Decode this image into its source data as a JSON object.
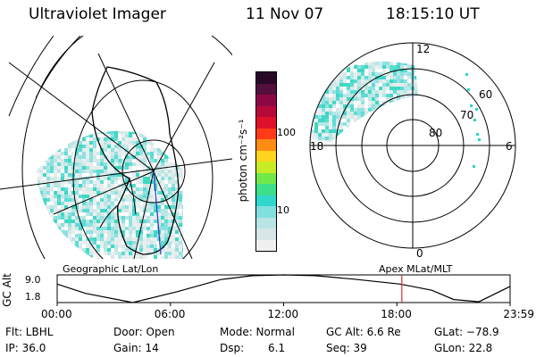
{
  "header": {
    "instrument": "Ultraviolet Imager",
    "date": "11 Nov 07",
    "time": "18:15:10 UT"
  },
  "colorbar": {
    "label": "photon cm⁻²s⁻¹",
    "ticks": [
      "100",
      "10"
    ],
    "colors": [
      "#f0f0f0",
      "#d7e6e6",
      "#b9e4e6",
      "#80e0e0",
      "#2fd8cc",
      "#3be088",
      "#6fe84a",
      "#c8ec24",
      "#ffd41e",
      "#ff8c12",
      "#ff3a18",
      "#e0102a",
      "#b8083a",
      "#8c0844",
      "#54103c",
      "#280a28"
    ]
  },
  "maps": {
    "left_label": "Geographic Lat/Lon",
    "right_label": "Apex MLat/MLT",
    "right_rings": [
      "60",
      "70",
      "80"
    ],
    "right_mlt": [
      "12",
      "18",
      "6",
      "0"
    ]
  },
  "chart_data": {
    "type": "line",
    "title": "",
    "ylabel": "GC Alt",
    "yticks": [
      "9.0",
      "1.8"
    ],
    "ylim": [
      1.8,
      9.0
    ],
    "xlim": [
      0,
      1439
    ],
    "xticks": [
      "00:00",
      "06:00",
      "12:00",
      "18:00",
      "23:59"
    ],
    "series": [
      {
        "x": [
          0,
          90,
          240,
          380,
          520,
          620,
          720,
          820,
          940,
          1090,
          1190,
          1260,
          1340,
          1439
        ],
        "y": [
          6.6,
          4.2,
          1.8,
          4.6,
          7.8,
          8.8,
          9.0,
          8.8,
          7.9,
          6.6,
          5.0,
          2.6,
          2.0,
          6.0
        ]
      }
    ],
    "marker_x": 1095,
    "marker_color": "#d83030"
  },
  "info": {
    "flt": "Flt: LBHL",
    "door": "Door: Open",
    "mode": "Mode: Normal",
    "gcalt": "GC Alt: 6.6 Re",
    "glat": "GLat: −78.9",
    "ip": "IP: 36.0",
    "gain": "Gain: 14",
    "dsp_label": "Dsp:",
    "dsp_value": "6.1",
    "seq": "Seq: 39",
    "glon": "GLon: 22.8"
  }
}
